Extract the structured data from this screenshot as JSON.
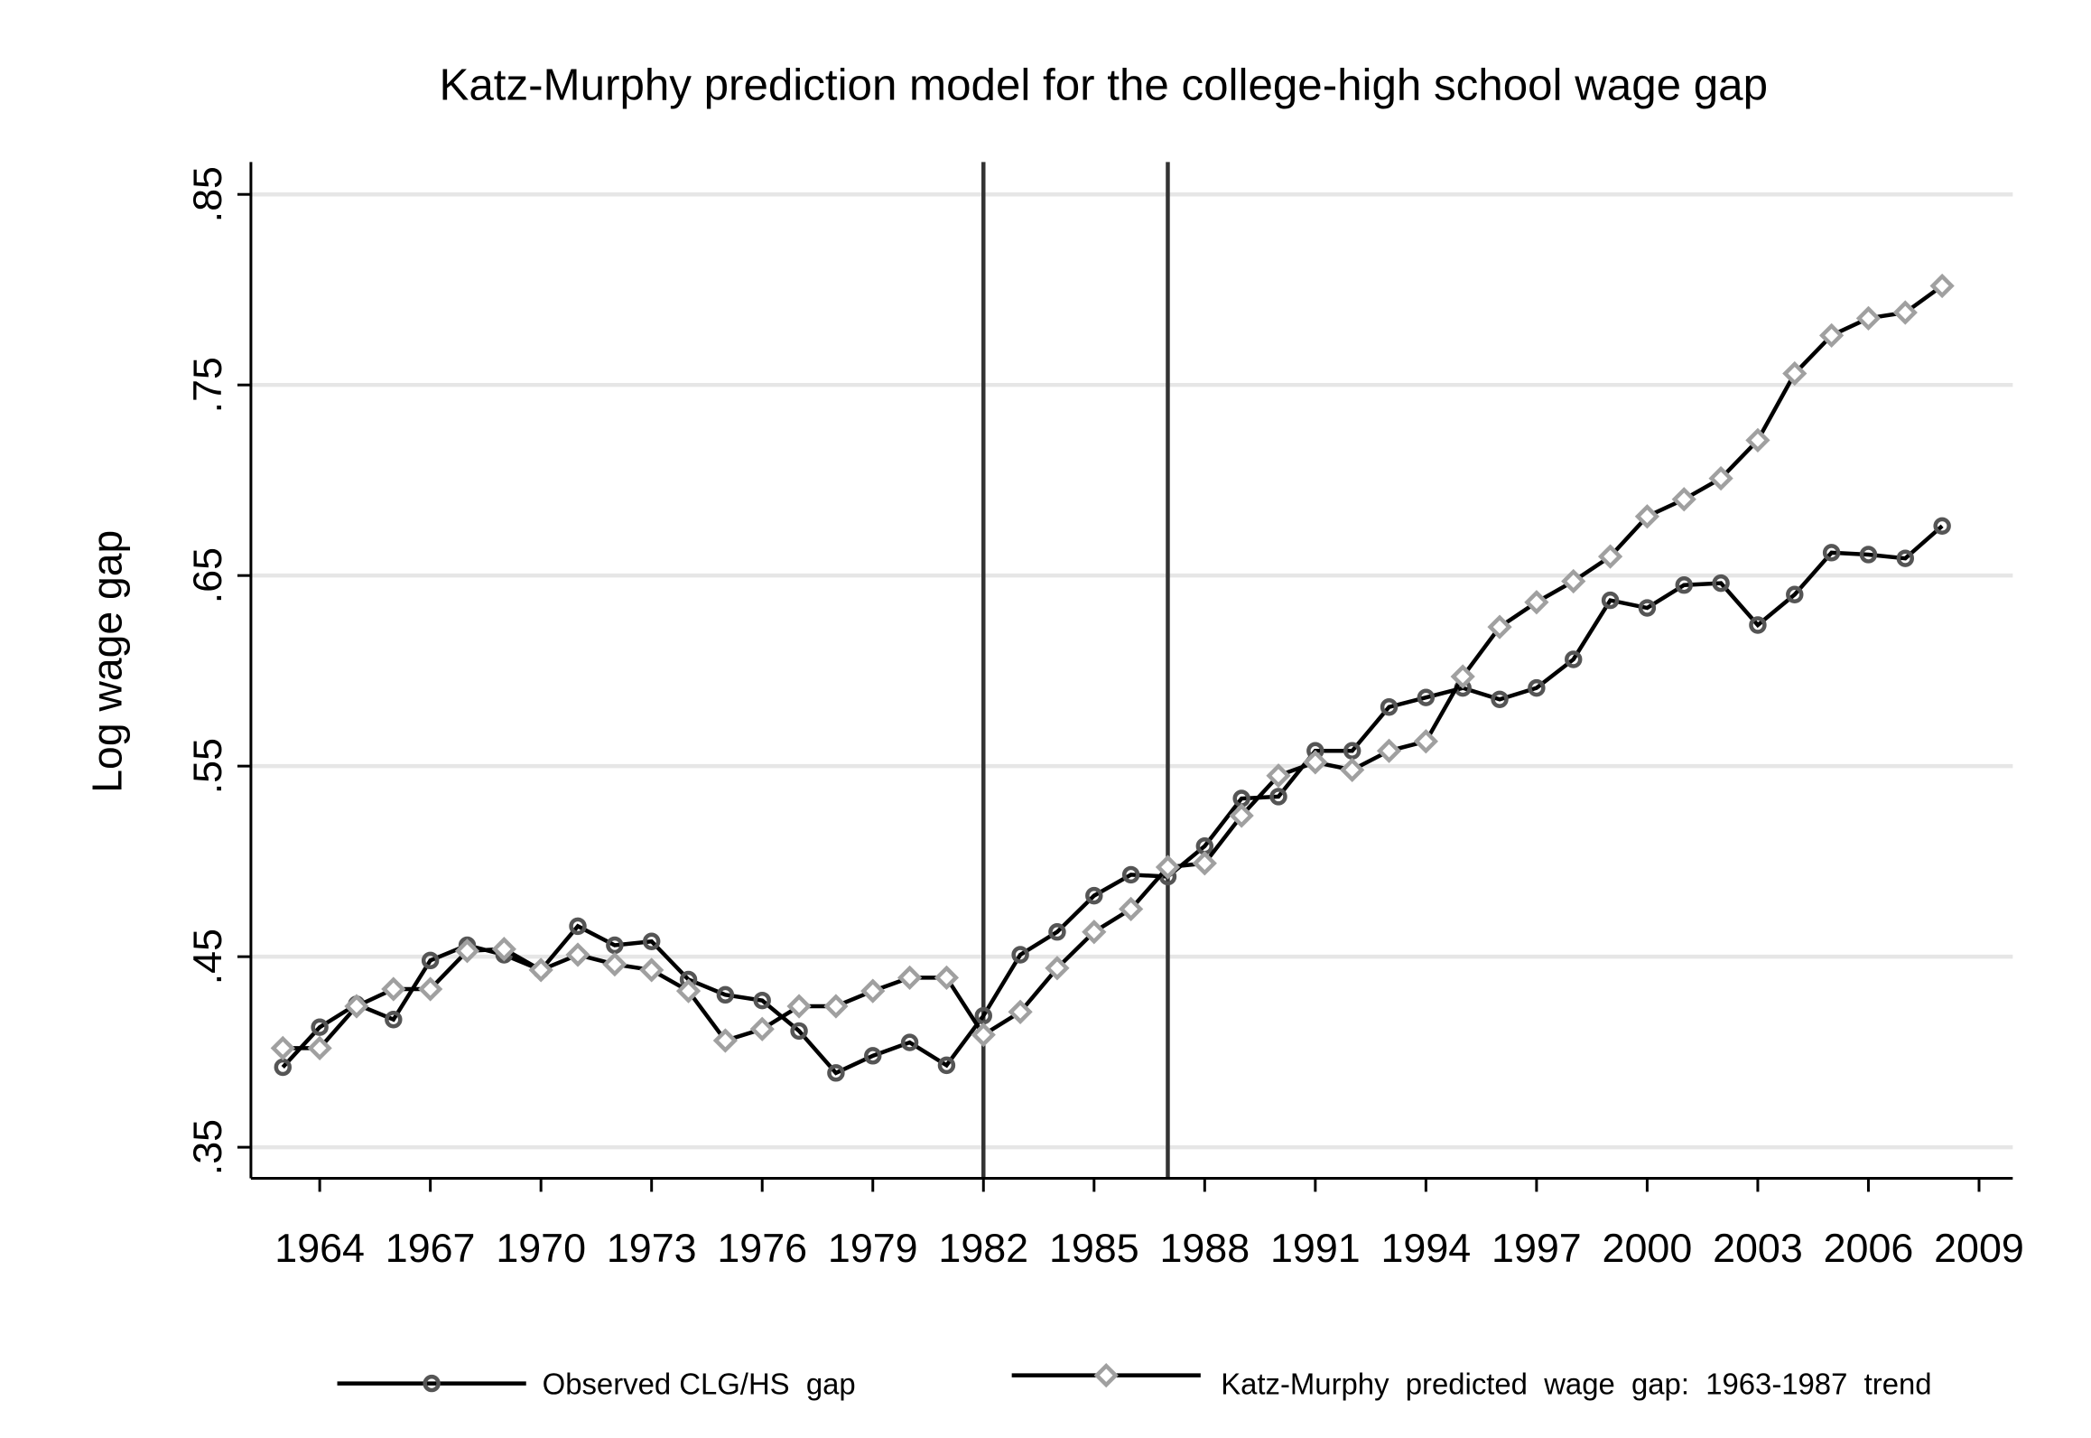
{
  "chart_data": {
    "type": "line",
    "title": "Katz-Murphy prediction model for the college-high school wage gap",
    "xlabel": "",
    "ylabel": "Log wage gap",
    "xlim": [
      1962.3,
      2011
    ],
    "ylim": [
      0.335,
      0.867
    ],
    "x_ticks": [
      1964,
      1967,
      1970,
      1973,
      1976,
      1979,
      1982,
      1985,
      1988,
      1991,
      1994,
      1997,
      2000,
      2003,
      2006,
      2009
    ],
    "y_ticks": [
      0.35,
      0.45,
      0.55,
      0.65,
      0.75,
      0.85
    ],
    "y_tick_labels": [
      ".35",
      ".45",
      ".55",
      ".65",
      ".75",
      ".85"
    ],
    "grid": true,
    "vertical_lines": [
      1982,
      1987
    ],
    "legend_position": "bottom",
    "x": [
      1963,
      1964,
      1965,
      1966,
      1967,
      1968,
      1969,
      1970,
      1971,
      1972,
      1973,
      1974,
      1975,
      1976,
      1977,
      1978,
      1979,
      1980,
      1981,
      1982,
      1983,
      1984,
      1985,
      1986,
      1987,
      1988,
      1989,
      1990,
      1991,
      1992,
      1993,
      1994,
      1995,
      1996,
      1997,
      1998,
      1999,
      2000,
      2001,
      2002,
      2003,
      2004,
      2005,
      2006,
      2007,
      2008
    ],
    "series": [
      {
        "name": "Observed CLG/HS  gap",
        "marker": "circle",
        "color": "#000000",
        "marker_color": "#555555",
        "values": [
          0.392,
          0.413,
          0.425,
          0.417,
          0.448,
          0.456,
          0.451,
          0.443,
          0.466,
          0.456,
          0.458,
          0.438,
          0.43,
          0.427,
          0.411,
          0.389,
          0.398,
          0.405,
          0.393,
          0.419,
          0.451,
          0.463,
          0.482,
          0.493,
          0.492,
          0.508,
          0.533,
          0.534,
          0.558,
          0.558,
          0.581,
          0.586,
          0.591,
          0.585,
          0.591,
          0.606,
          0.637,
          0.633,
          0.645,
          0.646,
          0.624,
          0.64,
          0.662,
          0.661,
          0.659,
          0.676
        ]
      },
      {
        "name": "Katz-Murphy  predicted  wage  gap:  1963-1987  trend",
        "marker": "diamond",
        "color": "#000000",
        "marker_color": "#a0a0a0",
        "values": [
          0.402,
          0.402,
          0.424,
          0.433,
          0.433,
          0.453,
          0.454,
          0.443,
          0.451,
          0.446,
          0.443,
          0.432,
          0.406,
          0.412,
          0.424,
          0.424,
          0.432,
          0.439,
          0.439,
          0.409,
          0.421,
          0.444,
          0.463,
          0.475,
          0.497,
          0.499,
          0.524,
          0.545,
          0.552,
          0.548,
          0.558,
          0.563,
          0.597,
          0.623,
          0.636,
          0.647,
          0.66,
          0.681,
          0.69,
          0.701,
          0.721,
          0.756,
          0.776,
          0.785,
          0.788,
          0.802
        ]
      }
    ]
  }
}
